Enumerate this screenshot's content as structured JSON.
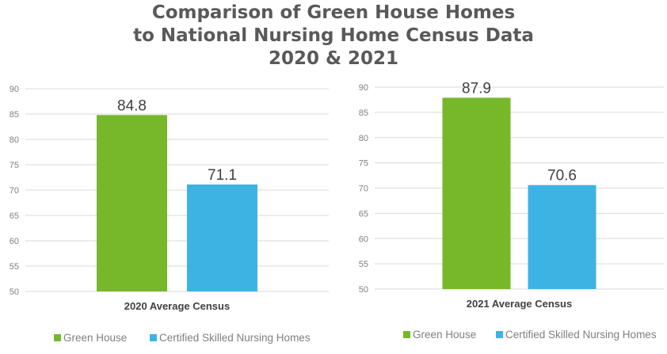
{
  "title_lines": [
    "Comparison of Green House Homes",
    "to National Nursing Home Census Data",
    "2020 & 2021"
  ],
  "colors": {
    "green_house": "#76b82a",
    "snf": "#3db3e3",
    "axis_text": "#7f7f7f",
    "grid": "#d9d9d9"
  },
  "chart_data": [
    {
      "type": "bar",
      "xlabel": "2020 Average Census",
      "ylim": [
        50,
        90
      ],
      "yticks": [
        "50",
        "55",
        "60",
        "65",
        "70",
        "75",
        "80",
        "85",
        "90"
      ],
      "grid": true,
      "legend": "bottom",
      "series": [
        {
          "name": "Green House",
          "value": 84.8,
          "label": "84.8"
        },
        {
          "name": "Certified Skilled Nursing Homes",
          "value": 71.1,
          "label": "71.1"
        }
      ]
    },
    {
      "type": "bar",
      "xlabel": "2021 Average Census",
      "ylim": [
        50,
        90
      ],
      "yticks": [
        "50",
        "55",
        "60",
        "65",
        "70",
        "75",
        "80",
        "85",
        "90"
      ],
      "grid": true,
      "legend": "bottom",
      "series": [
        {
          "name": "Green House",
          "value": 87.9,
          "label": "87.9"
        },
        {
          "name": "Certified Skilled Nursing Homes",
          "value": 70.6,
          "label": "70.6"
        }
      ]
    }
  ]
}
